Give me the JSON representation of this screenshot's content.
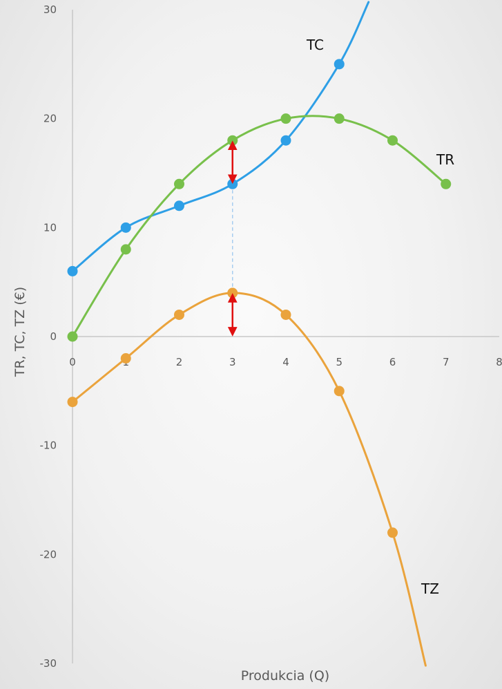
{
  "chart_data": {
    "type": "line",
    "title": "",
    "xlabel": "Produkcia (Q)",
    "ylabel": "TR, TC, TZ (€)",
    "xlim": [
      0,
      8
    ],
    "ylim": [
      -30,
      30
    ],
    "x_ticks": [
      0,
      1,
      2,
      3,
      4,
      5,
      6,
      7,
      8
    ],
    "y_ticks": [
      -30,
      -20,
      -10,
      0,
      10,
      20,
      30
    ],
    "grid": false,
    "legend": "none",
    "series": [
      {
        "name": "TC",
        "color": "#2e9fe6",
        "points": [
          [
            0,
            6
          ],
          [
            1,
            10
          ],
          [
            2,
            12
          ],
          [
            3,
            14
          ],
          [
            4,
            18
          ],
          [
            5,
            25
          ]
        ],
        "curve_end": [
          5.55,
          30.7
        ]
      },
      {
        "name": "TR",
        "color": "#78c04b",
        "points": [
          [
            0,
            0
          ],
          [
            1,
            8
          ],
          [
            2,
            14
          ],
          [
            3,
            18
          ],
          [
            4,
            20
          ],
          [
            5,
            20
          ],
          [
            6,
            18
          ],
          [
            7,
            14
          ]
        ]
      },
      {
        "name": "TZ",
        "color": "#eaa33c",
        "points": [
          [
            0,
            -6
          ],
          [
            1,
            -2
          ],
          [
            2,
            2
          ],
          [
            3,
            4
          ],
          [
            4,
            2
          ],
          [
            5,
            -5
          ],
          [
            6,
            -18
          ]
        ],
        "curve_end": [
          6.62,
          -30.2
        ]
      }
    ],
    "annotations": {
      "arrow_color": "#e01010",
      "guide_color": "#a7cdf0",
      "arrows": [
        {
          "x": 3,
          "from": 14,
          "to": 18
        },
        {
          "x": 3,
          "from": 0,
          "to": 4
        }
      ],
      "guide_line": {
        "x": 3,
        "from": 4,
        "to": 14
      }
    }
  }
}
